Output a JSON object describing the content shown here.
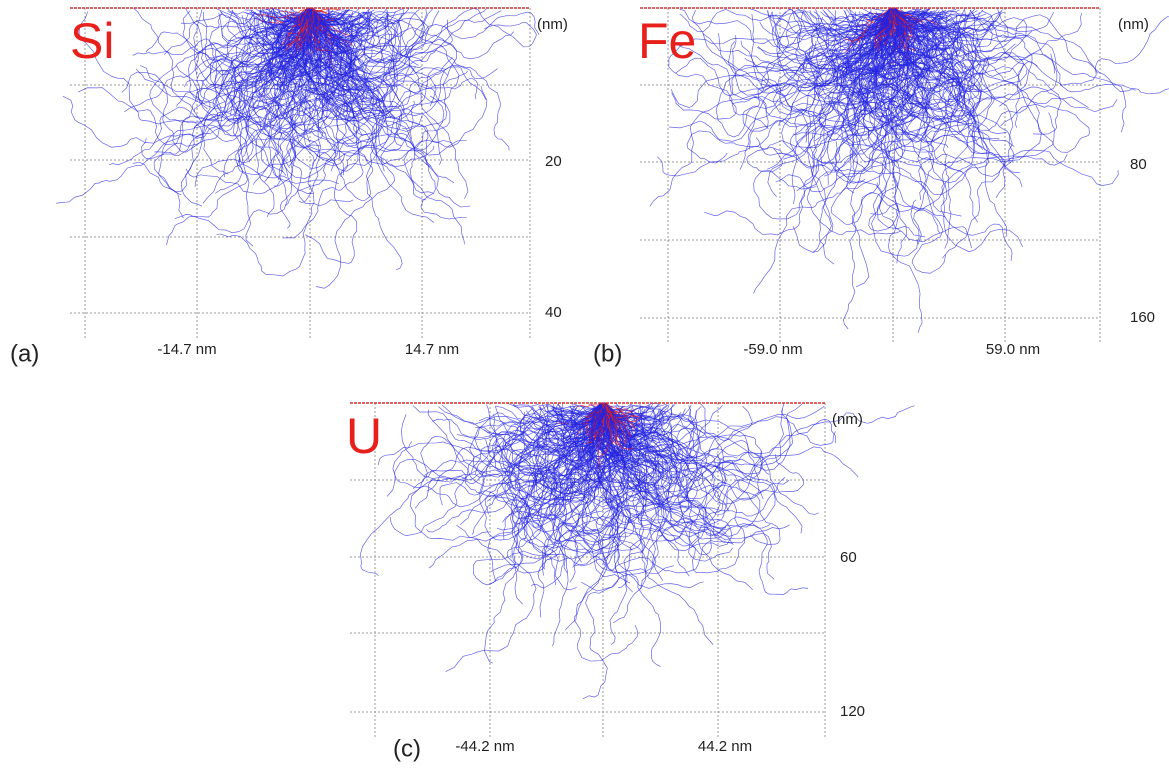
{
  "panels": [
    {
      "label": "(a)",
      "element": "Si",
      "depth_unit": "(nm)",
      "y_ticks": [
        20,
        40
      ],
      "x_ticks": [
        "-14.7 nm",
        "14.7 nm"
      ]
    },
    {
      "label": "(b)",
      "element": "Fe",
      "depth_unit": "(nm)",
      "y_ticks": [
        80,
        160
      ],
      "x_ticks": [
        "-59.0 nm",
        "59.0 nm"
      ]
    },
    {
      "label": "(c)",
      "element": "U",
      "depth_unit": "(nm)",
      "y_ticks": [
        60,
        120
      ],
      "x_ticks": [
        "-44.2 nm",
        "44.2 nm"
      ]
    }
  ]
}
